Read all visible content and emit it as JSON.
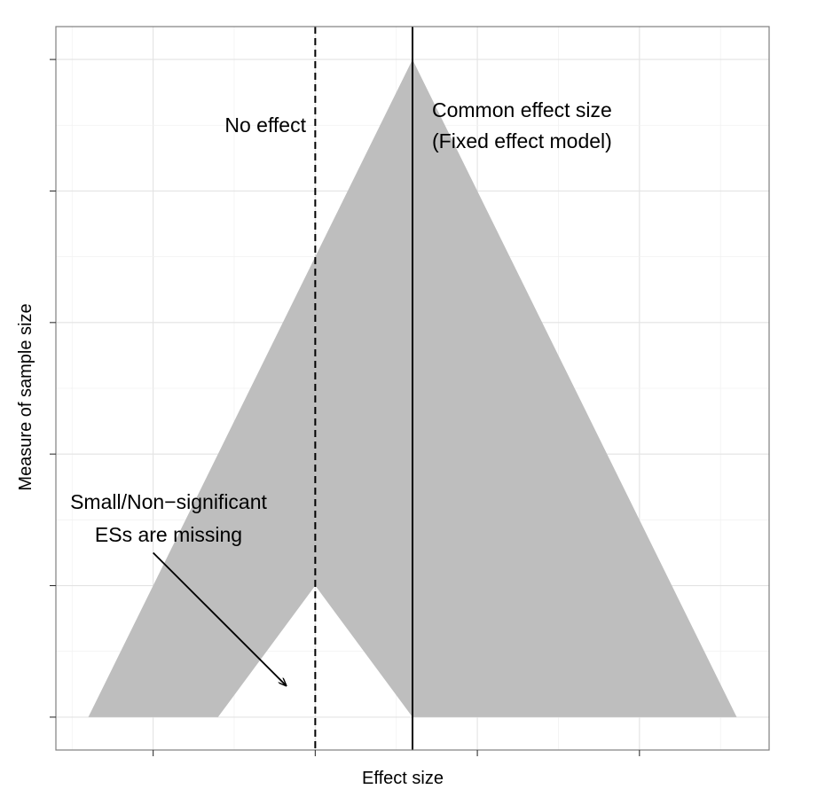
{
  "chart_data": {
    "type": "area",
    "title": "",
    "xlabel": "Effect size",
    "ylabel": "Measure of sample size",
    "x_tick_labels": [],
    "y_tick_labels": [],
    "xlim": [
      -1.6,
      2.8
    ],
    "ylim": [
      -0.25,
      5.25
    ],
    "grid": true,
    "fill_color": "#bebebe",
    "funnel_polygon": {
      "x": [
        -1.4,
        0.6,
        2.6,
        0.6,
        0.0,
        -0.6
      ],
      "y": [
        0,
        5,
        0,
        0,
        1,
        0
      ]
    },
    "reference_lines": [
      {
        "name": "No effect",
        "x": 0.0,
        "style": "dashed"
      },
      {
        "name": "Common effect size (Fixed effect model)",
        "x": 0.6,
        "style": "solid"
      }
    ],
    "annotations": {
      "no_effect": "No effect",
      "common_line1": "Common effect size",
      "common_line2": "(Fixed effect model)",
      "missing_line1": "Small/Non−significant",
      "missing_line2": "ESs are missing"
    },
    "arrow": {
      "from": [
        -1.0,
        1.25
      ],
      "to": [
        -0.18,
        0.24
      ]
    }
  }
}
